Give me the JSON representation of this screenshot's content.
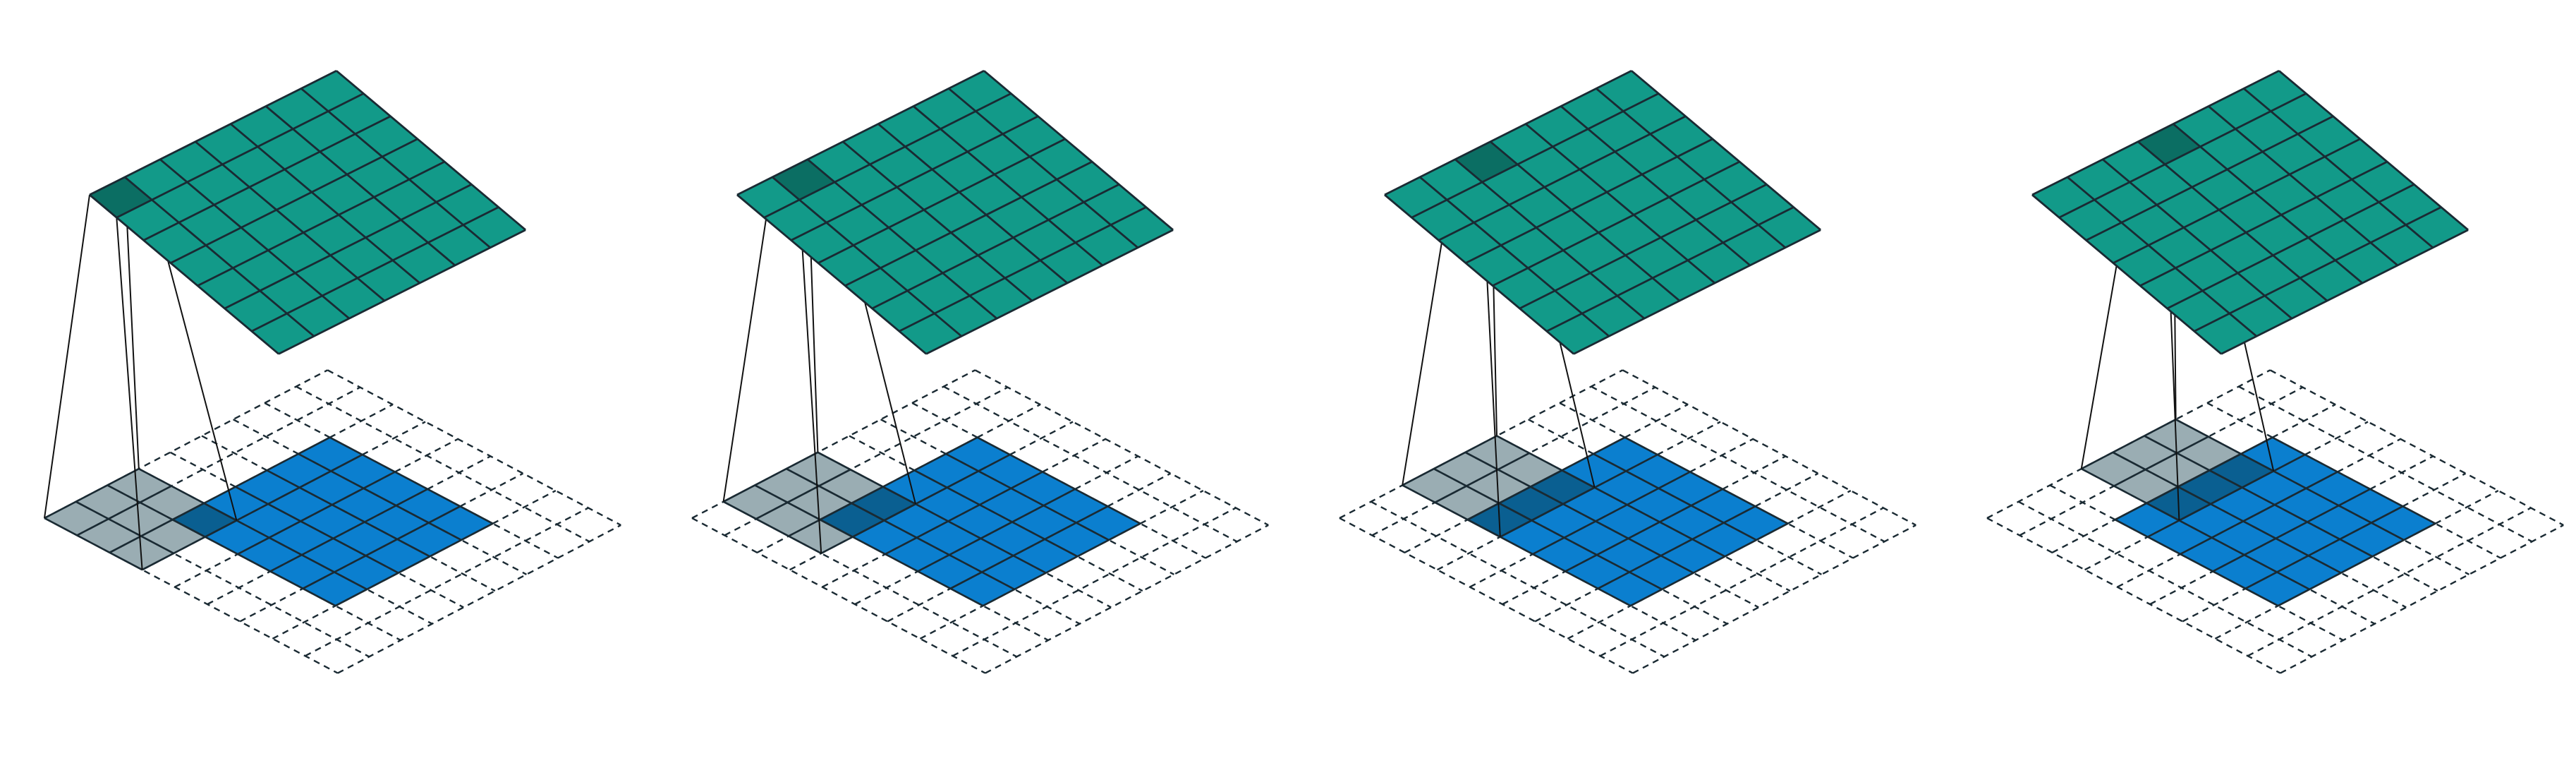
{
  "figure": {
    "kind": "convolution-animation-frames",
    "panel_count": 4,
    "input": {
      "grid": 9,
      "data_offset": 2,
      "data_size": 5,
      "border": "dashed"
    },
    "output": {
      "grid": 7
    },
    "kernel": {
      "size": 3
    },
    "panels": [
      {
        "kernel_row": 0,
        "kernel_col": 0,
        "output_row": 0,
        "output_col": 0
      },
      {
        "kernel_row": 0,
        "kernel_col": 1,
        "output_row": 0,
        "output_col": 1
      },
      {
        "kernel_row": 0,
        "kernel_col": 2,
        "output_row": 0,
        "output_col": 2
      },
      {
        "kernel_row": 0,
        "kernel_col": 3,
        "output_row": 0,
        "output_col": 3
      }
    ],
    "colors": {
      "output_fill": "#129a89",
      "output_highlight": "#0b6e63",
      "input_data_fill": "#0b7fcf",
      "kernel_fill": "#9aadb3",
      "kernel_over_data_fill": "#0a5f91",
      "grid_line": "#1a2a33",
      "projection_line": "#111111"
    }
  }
}
